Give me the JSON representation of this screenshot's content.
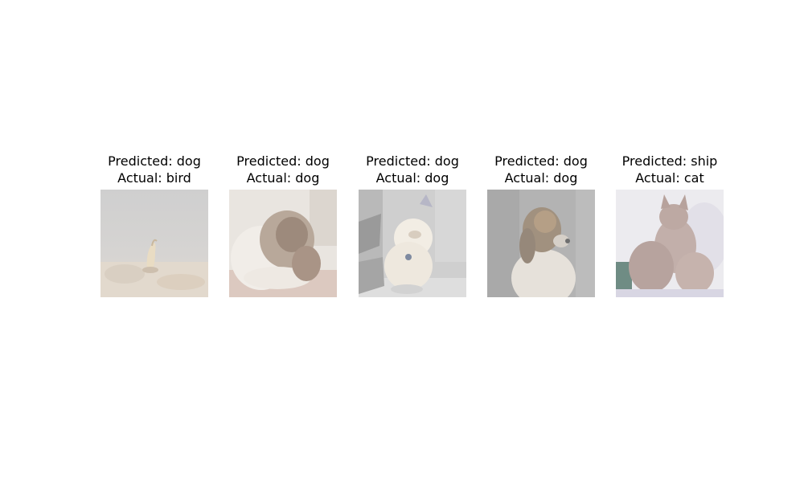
{
  "panels": [
    {
      "predicted": "Predicted: dog",
      "actual": "Actual: bird",
      "subject": "bird"
    },
    {
      "predicted": "Predicted: dog",
      "actual": "Actual: dog",
      "subject": "dog"
    },
    {
      "predicted": "Predicted: dog",
      "actual": "Actual: dog",
      "subject": "dog"
    },
    {
      "predicted": "Predicted: dog",
      "actual": "Actual: dog",
      "subject": "dog"
    },
    {
      "predicted": "Predicted: ship",
      "actual": "Actual: cat",
      "subject": "cat"
    }
  ]
}
